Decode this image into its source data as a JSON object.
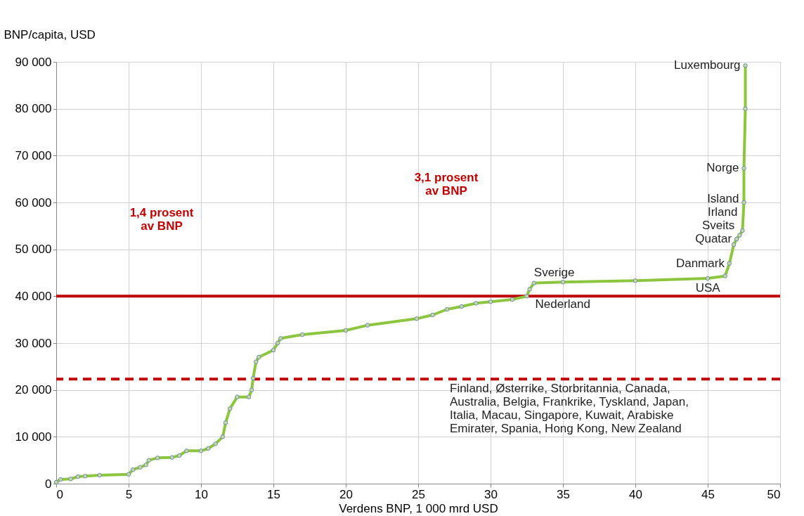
{
  "chart_data": {
    "type": "line",
    "xlabel": "Verdens BNP, 1 000 mrd USD",
    "ylabel": "BNP/capita, USD",
    "series": [
      {
        "color": "#8cc63f",
        "x": [
          0,
          0.3,
          1,
          1.5,
          2,
          3,
          5,
          5.3,
          5.8,
          6.2,
          6.4,
          7,
          8,
          8.5,
          9,
          10,
          10.5,
          11,
          11.5,
          11.7,
          12,
          12.5,
          13.3,
          13.5,
          13.6,
          13.8,
          14,
          15,
          15.3,
          15.5,
          17,
          20,
          21.5,
          24.9,
          26,
          27,
          28,
          29,
          30,
          31.5,
          32.5,
          32.7,
          33,
          35,
          40,
          45,
          46.2,
          46.5,
          46.8,
          47,
          47.2,
          47.4,
          47.5,
          47.5,
          47.6,
          47.6
        ],
        "values": [
          300,
          900,
          1000,
          1500,
          1600,
          1800,
          2000,
          3000,
          3500,
          4000,
          5000,
          5500,
          5600,
          6000,
          7000,
          7000,
          7500,
          8500,
          10000,
          13000,
          16000,
          18500,
          18500,
          20000,
          22500,
          26000,
          27000,
          28500,
          30000,
          31000,
          31800,
          32700,
          33800,
          35200,
          36000,
          37200,
          37800,
          38500,
          38800,
          39300,
          40000,
          41500,
          42800,
          43000,
          43300,
          43800,
          44300,
          47000,
          51000,
          52200,
          53000,
          54000,
          60000,
          67300,
          80000,
          89200
        ]
      }
    ],
    "xlim": [
      0,
      50
    ],
    "xticks": [
      0,
      5,
      10,
      15,
      20,
      25,
      30,
      35,
      40,
      45,
      50
    ],
    "ylim": [
      0,
      90000
    ],
    "yticks": [
      {
        "value": 0,
        "label": "0"
      },
      {
        "value": 10000,
        "label": "10 000"
      },
      {
        "value": 20000,
        "label": "20 000"
      },
      {
        "value": 30000,
        "label": "30 000"
      },
      {
        "value": 40000,
        "label": "40 000"
      },
      {
        "value": 50000,
        "label": "50 000"
      },
      {
        "value": 60000,
        "label": "60 000"
      },
      {
        "value": 70000,
        "label": "70 000"
      },
      {
        "value": 80000,
        "label": "80 000"
      },
      {
        "value": 90000,
        "label": "90 000"
      }
    ],
    "grid": true,
    "marker": "circle",
    "line_style": "solid",
    "ref_lines": [
      {
        "axis": "y",
        "value": 40000,
        "color": "#c00000",
        "line_style": "solid"
      },
      {
        "axis": "y",
        "value": 22300,
        "color": "#c00000",
        "line_style": "dashed"
      }
    ],
    "annotations": [
      {
        "text": "Luxembourg",
        "x": 47.6,
        "y": 89200
      },
      {
        "text": "Norge",
        "x": 47.5,
        "y": 67300
      },
      {
        "text": "Island",
        "x": 47.5,
        "y": 60000
      },
      {
        "text": "Irland",
        "x": 47.4,
        "y": 54000
      },
      {
        "text": "Sveits",
        "x": 47.2,
        "y": 53000
      },
      {
        "text": "Quatar",
        "x": 47,
        "y": 52200
      },
      {
        "text": "Danmark",
        "x": 46.5,
        "y": 47000
      },
      {
        "text": "USA",
        "x": 46.2,
        "y": 44300
      },
      {
        "text": "Sverige",
        "x": 33,
        "y": 42800
      },
      {
        "text": "Nederland",
        "x": 32.5,
        "y": 40000
      },
      "1,4 prosent\nav BNP",
      "3,1 prosent\nav BNP",
      "Finland, Østerrike, Storbritannia, Canada,\nAustralia, Belgia, Frankrike, Tyskland, Japan,\nItalia, Macau, Singapore, Kuwait, Arabiske\nEmirater, Spania, Hong Kong, New Zealand"
    ]
  }
}
